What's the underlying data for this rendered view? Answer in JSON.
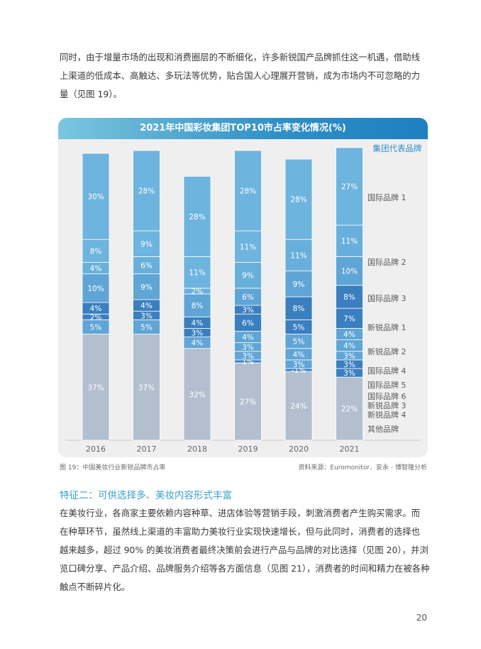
{
  "intro_lines": [
    "同时，由于增量市场的出现和消费圈层的不断细化，许多新锐国产品牌抓住这一机遇，借助线",
    "上渠道的低成本、高触达、多玩法等优势，贴合国人心理展开营销，成为市场内不可忽略的力",
    "量（见图 19）。"
  ],
  "chart_data": {
    "type": "bar",
    "stacked": true,
    "title": "2021年中国彩妆集团TOP10市占率变化情况(%)",
    "legend_title": "集团代表品牌",
    "categories": [
      "2016",
      "2017",
      "2018",
      "2019",
      "2020",
      "2021"
    ],
    "series": [
      {
        "name": "其他品牌",
        "color": "#b3bfcf",
        "values": [
          37,
          37,
          32,
          27,
          24,
          22
        ],
        "labels": [
          "37%",
          "37%",
          "32%",
          "27%",
          "24%",
          "22%"
        ]
      },
      {
        "name": "新锐品牌 4",
        "color": "#3a7fbf",
        "values": [
          0,
          0,
          0,
          0,
          0,
          3
        ],
        "labels": [
          "",
          "",
          "",
          "",
          "",
          "3%"
        ]
      },
      {
        "name": "新锐品牌 3",
        "color": "#3a7fbf",
        "values": [
          0,
          0,
          0,
          1,
          -1,
          3
        ],
        "labels": [
          "",
          "",
          "",
          "1%",
          "-1%",
          "3%"
        ]
      },
      {
        "name": "国际品牌 6",
        "color": "#5fa5d6",
        "values": [
          0,
          0,
          0,
          3,
          3,
          3
        ],
        "labels": [
          "",
          "",
          "",
          "3%",
          "3%",
          "3%"
        ]
      },
      {
        "name": "国际品牌 5",
        "color": "#5fa5d6",
        "values": [
          0,
          0,
          0,
          3,
          4,
          4
        ],
        "labels": [
          "",
          "",
          "0%",
          "3%",
          "4%",
          "4%"
        ]
      },
      {
        "name": "国际品牌 4",
        "color": "#5fa5d6",
        "values": [
          5,
          5,
          4,
          4,
          5,
          4
        ],
        "labels": [
          "5%",
          "5%",
          "4%",
          "4%",
          "5%",
          "4%"
        ]
      },
      {
        "name": "新锐品牌 2",
        "color": "#3a7fbf",
        "values": [
          2,
          3,
          3,
          6,
          5,
          7
        ],
        "labels": [
          "2%",
          "3%",
          "3%",
          "6%",
          "5%",
          "7%"
        ]
      },
      {
        "name": "新锐品牌 1",
        "color": "#3a7fbf",
        "values": [
          4,
          4,
          4,
          3,
          8,
          8
        ],
        "labels": [
          "4%",
          "4%",
          "4%",
          "3%",
          "8%",
          "8%"
        ]
      },
      {
        "name": "国际品牌 3",
        "color": "#5fa5d6",
        "values": [
          10,
          9,
          8,
          6,
          9,
          10
        ],
        "labels": [
          "10%",
          "9%",
          "8%",
          "6%",
          "9%",
          "10%"
        ]
      },
      {
        "name": "国际品牌 2",
        "color": "#68b0db",
        "values": [
          4,
          6,
          2,
          9,
          11,
          11
        ],
        "labels": [
          "4%",
          "6%",
          "2%",
          "9%",
          "11%",
          "11%"
        ]
      },
      {
        "name": "国际品牌 1",
        "color": "#6db4de",
        "values": [
          8,
          9,
          11,
          11,
          28,
          27
        ],
        "labels": [
          "8%",
          "9%",
          "11%",
          "11%",
          "28%",
          "27%"
        ]
      },
      {
        "name": "",
        "color": "#6db4de",
        "values": [
          30,
          28,
          28,
          28,
          0,
          0
        ],
        "labels": [
          "30%",
          "28%",
          "28%",
          "28%",
          "",
          ""
        ]
      }
    ],
    "legend_labels": [
      "国际品牌 1",
      "国际品牌 2",
      "国际品牌 3",
      "新锐品牌 1",
      "新锐品牌 2",
      "国际品牌 4",
      "国际品牌 5",
      "国际品牌 6",
      "新锐品牌 3",
      "新锐品牌 4",
      "其他品牌"
    ],
    "xlabel": "",
    "ylabel": "",
    "ylim": [
      0,
      100
    ],
    "grid": false,
    "legend_placement": "right"
  },
  "caption_left": "图 19：中国美妆行业新锐品牌市占率",
  "caption_right": "资料来源：Euromonitor、安永 - 博智隆分析",
  "section_heading": "特征二：可供选择多、美妆内容形式丰富",
  "body_lines": [
    "在美妆行业，各商家主要依赖内容种草、进店体验等营销手段，刺激消费者产生购买需求。而",
    "在种草环节，虽然线上渠道的丰富助力美妆行业实现快速增长，但与此同时，消费者的选择也",
    "越来越多，超过 90% 的美妆消费者最终决策前会进行产品与品牌的对比选择（见图 20），并浏",
    "览口碑分享、产品介绍、品牌服务介绍等各方面信息（见图 21），消费者的时间和精力在被各种",
    "触点不断碎片化。"
  ],
  "page_number": "20"
}
